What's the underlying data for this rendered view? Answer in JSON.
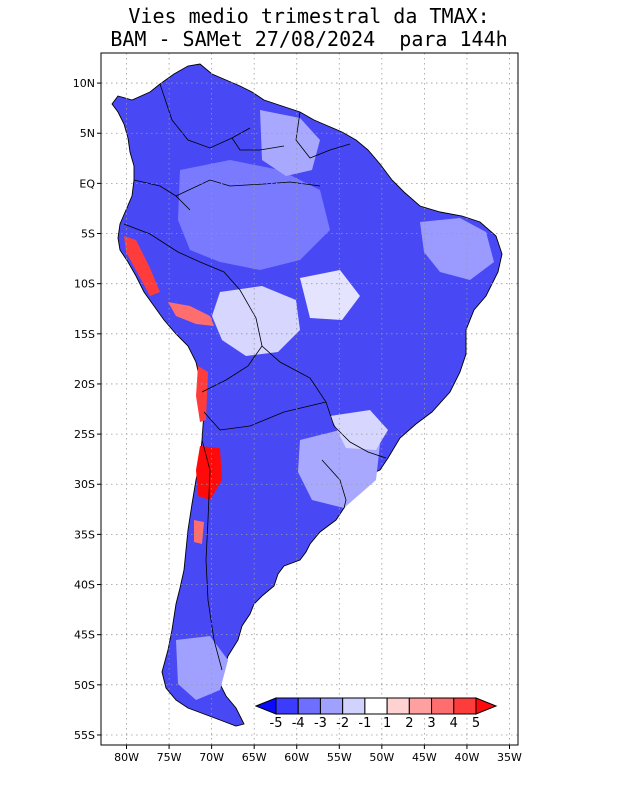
{
  "title": {
    "line1": "Vies medio trimestral da TMAX:",
    "line2": "BAM - SAMet 27/08/2024  para 144h"
  },
  "axes": {
    "lat_labels": [
      "10N",
      "5N",
      "EQ",
      "5S",
      "10S",
      "15S",
      "20S",
      "25S",
      "30S",
      "35S",
      "40S",
      "45S",
      "50S",
      "55S"
    ],
    "lat_values": [
      10,
      5,
      0,
      -5,
      -10,
      -15,
      -20,
      -25,
      -30,
      -35,
      -40,
      -45,
      -50,
      -55
    ],
    "lon_labels": [
      "80W",
      "75W",
      "70W",
      "65W",
      "60W",
      "55W",
      "50W",
      "45W",
      "40W",
      "35W"
    ],
    "lon_values": [
      -80,
      -75,
      -70,
      -65,
      -60,
      -55,
      -50,
      -45,
      -40,
      -35
    ],
    "lon_range": [
      -83,
      -34
    ],
    "lat_range": [
      -56,
      13
    ]
  },
  "colorbar": {
    "labels": [
      "-5",
      "-4",
      "-3",
      "-2",
      "-1",
      "1",
      "2",
      "3",
      "4",
      "5"
    ],
    "colors": [
      "#0a0aff",
      "#3c3cff",
      "#6e6eff",
      "#a0a0ff",
      "#d2d2ff",
      "#ffffff",
      "#ffd2d2",
      "#ffa0a0",
      "#ff6e6e",
      "#ff3c3c",
      "#ff0a0a"
    ]
  },
  "colors": {
    "ocean": "#ffffff",
    "land_base": "#4848f5",
    "grid": "#9a9a9a",
    "border": "#000000"
  }
}
